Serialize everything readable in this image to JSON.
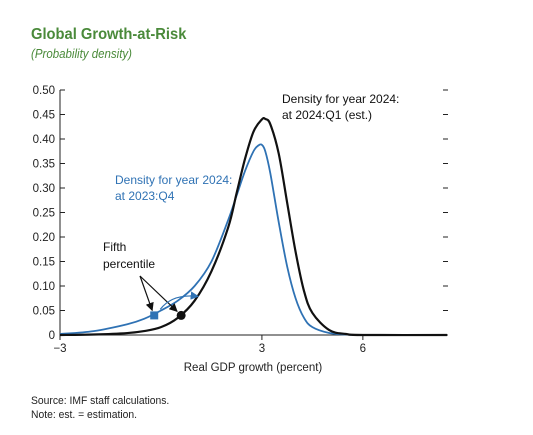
{
  "chart_data": {
    "type": "line",
    "title": "Global Growth-at-Risk",
    "subtitle": "(Probability density)",
    "xlabel": "Real GDP growth (percent)",
    "ylabel": "",
    "xlim": [
      -3,
      8.5
    ],
    "ylim": [
      0,
      0.5
    ],
    "x_ticks": [
      -3,
      3,
      6
    ],
    "x_tick_labels": [
      "−3",
      "3",
      "6"
    ],
    "y_ticks": [
      0,
      0.05,
      0.1,
      0.15,
      0.2,
      0.25,
      0.3,
      0.35,
      0.4,
      0.45,
      0.5
    ],
    "y_tick_labels": [
      "0",
      "0.05",
      "0.10",
      "0.15",
      "0.20",
      "0.25",
      "0.30",
      "0.35",
      "0.40",
      "0.45",
      "0.50"
    ],
    "grid": false,
    "series": [
      {
        "name": "Density for year 2024: at 2023:Q4",
        "color": "#2f72b4",
        "x": [
          -3.0,
          -2.0,
          -1.0,
          -0.5,
          0.0,
          0.5,
          1.0,
          1.5,
          2.0,
          2.25,
          2.5,
          2.75,
          2.9,
          3.0,
          3.1,
          3.25,
          3.5,
          3.75,
          4.0,
          4.25,
          4.5,
          5.0,
          5.5,
          6.0,
          8.5
        ],
        "y": [
          0.002,
          0.008,
          0.022,
          0.033,
          0.05,
          0.07,
          0.1,
          0.15,
          0.235,
          0.285,
          0.335,
          0.375,
          0.387,
          0.388,
          0.375,
          0.33,
          0.23,
          0.14,
          0.075,
          0.035,
          0.016,
          0.004,
          0.001,
          0.0,
          0.0
        ]
      },
      {
        "name": "Density for year 2024: at 2024:Q1 (est.)",
        "color": "#111111",
        "x": [
          -3.0,
          -2.0,
          -1.0,
          -0.5,
          0.0,
          0.5,
          1.0,
          1.5,
          2.0,
          2.25,
          2.5,
          2.75,
          3.0,
          3.1,
          3.25,
          3.5,
          3.75,
          4.0,
          4.25,
          4.5,
          5.0,
          5.5,
          6.0,
          8.5
        ],
        "y": [
          0.0,
          0.001,
          0.004,
          0.008,
          0.016,
          0.035,
          0.07,
          0.13,
          0.22,
          0.29,
          0.36,
          0.415,
          0.44,
          0.441,
          0.43,
          0.37,
          0.27,
          0.17,
          0.09,
          0.045,
          0.01,
          0.002,
          0.0,
          0.0
        ]
      }
    ],
    "markers": [
      {
        "name": "fifth-percentile-2023q4",
        "shape": "square",
        "color": "#2f72b4",
        "x": -0.2,
        "y": 0.04
      },
      {
        "name": "fifth-percentile-2024q1",
        "shape": "circle",
        "color": "#111111",
        "x": 0.6,
        "y": 0.04
      }
    ],
    "annotations": {
      "blue_label_line1": "Density for year 2024:",
      "blue_label_line2": "at 2023:Q4",
      "black_label_line1": "Density for year 2024:",
      "black_label_line2": "at 2024:Q1 (est.)",
      "fifth_line1": "Fifth",
      "fifth_line2": "percentile"
    }
  },
  "notes": {
    "source": "Source: IMF staff calculations.",
    "note": "Note: est. = estimation."
  }
}
